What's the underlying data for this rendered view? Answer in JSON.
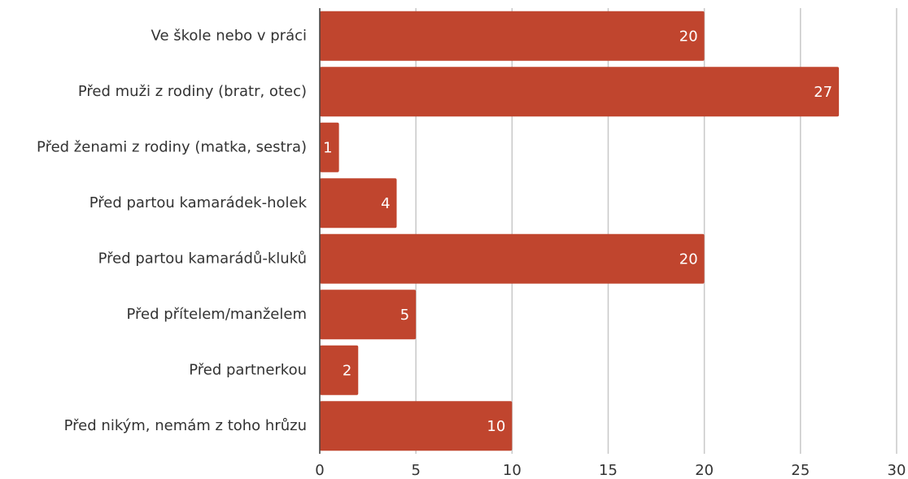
{
  "chart_data": {
    "type": "bar",
    "orientation": "horizontal",
    "categories": [
      "Ve škole nebo v práci",
      "Před muži z rodiny (bratr, otec)",
      "Před ženami z rodiny (matka, sestra)",
      "Před partou kamarádek-holek",
      "Před partou kamarádů-kluků",
      "Před přítelem/manželem",
      "Před partnerkou",
      "Před nikým, nemám z toho hrůzu"
    ],
    "values": [
      20,
      27,
      1,
      4,
      20,
      5,
      2,
      10
    ],
    "color": "#c0452e",
    "xlim": [
      0,
      30
    ],
    "xticks": [
      0,
      5,
      10,
      15,
      20,
      25,
      30
    ],
    "grid": true
  }
}
